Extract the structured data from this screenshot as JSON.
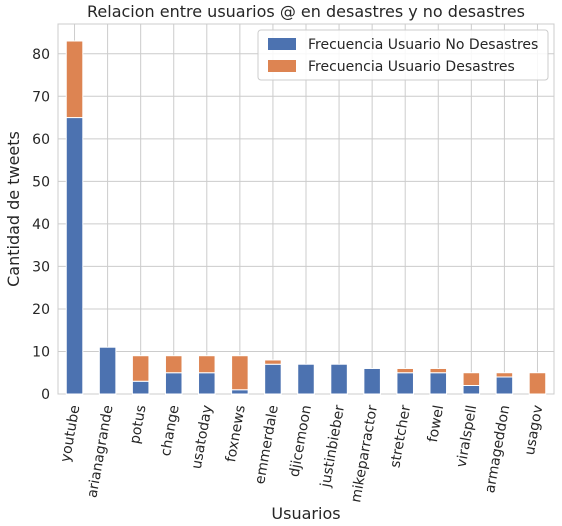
{
  "chart_data": {
    "type": "bar",
    "stacked": true,
    "title": "Relacion entre usuarios @ en desastres y no desastres",
    "xlabel": "Usuarios",
    "ylabel": "Cantidad de tweets",
    "ylim": [
      0,
      87
    ],
    "yticks": [
      0,
      10,
      20,
      30,
      40,
      50,
      60,
      70,
      80
    ],
    "grid": true,
    "legend_position": "top-right",
    "categories": [
      "youtube",
      "arianagrande",
      "potus",
      "change",
      "usatoday",
      "foxnews",
      "emmerdale",
      "djicemoon",
      "justinbieber",
      "mikeparractor",
      "stretcher",
      "fowel",
      "viralspell",
      "armageddon",
      "usagov"
    ],
    "series": [
      {
        "name": "Frecuencia Usuario No Desastres",
        "color": "#4c72b0",
        "values": [
          65,
          11,
          3,
          5,
          5,
          1,
          7,
          7,
          7,
          6,
          5,
          5,
          2,
          4,
          0
        ]
      },
      {
        "name": "Frecuencia Usuario Desastres",
        "color": "#dd8452",
        "values": [
          18,
          0,
          6,
          4,
          4,
          8,
          1,
          0,
          0,
          0,
          1,
          1,
          3,
          1,
          5
        ]
      }
    ]
  }
}
